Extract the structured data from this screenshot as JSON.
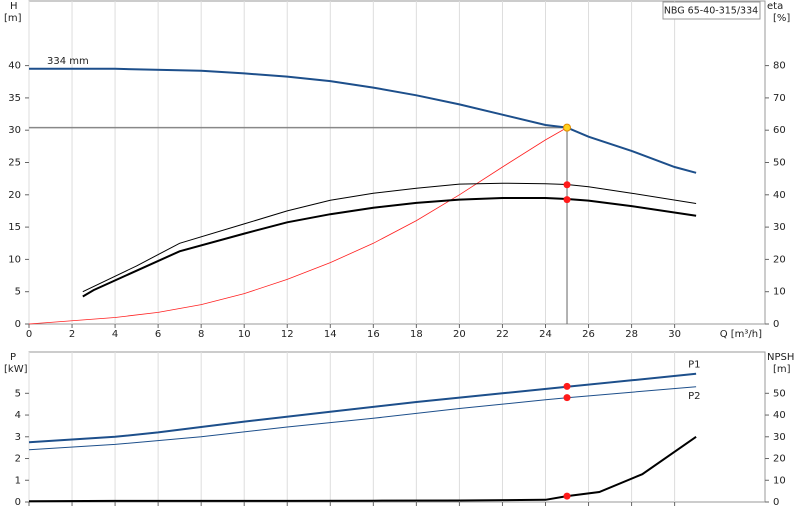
{
  "chart_data": [
    {
      "type": "line",
      "title": "NBG 65-40-315/334",
      "ylabel": "H",
      "yunit": "[m]",
      "y2label": "eta",
      "y2unit": "[%]",
      "xlabel": "Q [m³/h]",
      "annotation": "334 mm",
      "xlim": [
        0,
        34.2
      ],
      "xticks": [
        0,
        2,
        4,
        6,
        8,
        10,
        12,
        14,
        16,
        18,
        20,
        22,
        24,
        26,
        28,
        30
      ],
      "show_xtick_labels": true,
      "grid": "x",
      "ylim": [
        0,
        50
      ],
      "yticks": [
        0,
        5,
        10,
        15,
        20,
        25,
        30,
        35,
        40
      ],
      "y2lim": [
        0,
        100
      ],
      "y2ticks": [
        0,
        10,
        20,
        30,
        40,
        50,
        60,
        70,
        80
      ],
      "operating_point": {
        "x": 25,
        "y": 30.4
      },
      "series": [
        {
          "style": "line",
          "color": "#1d4f8b",
          "line_width": 2,
          "x": [
            0,
            4,
            8,
            10,
            12,
            14,
            16,
            18,
            20,
            22,
            24,
            25,
            26,
            28,
            30,
            31
          ],
          "values": [
            39.5,
            39.5,
            39.2,
            38.8,
            38.3,
            37.6,
            36.6,
            35.4,
            34.0,
            32.4,
            30.8,
            30.4,
            29.0,
            26.8,
            24.3,
            23.4
          ]
        },
        {
          "style": "line",
          "color": "#ff2020",
          "line_width": 0.8,
          "x": [
            0,
            4,
            6,
            8,
            10,
            12,
            14,
            16,
            18,
            20,
            22,
            24,
            25
          ],
          "values": [
            0,
            1,
            1.8,
            3,
            4.7,
            6.9,
            9.5,
            12.5,
            16,
            20,
            24.3,
            28.5,
            30.4
          ]
        },
        {
          "style": "line",
          "axis": "y2",
          "color": "#000000",
          "line_width": 1,
          "x": [
            2.5,
            5,
            7,
            10,
            12,
            14,
            16,
            18,
            20,
            22,
            24,
            25,
            26,
            28,
            31
          ],
          "values": [
            10,
            18,
            25,
            31,
            35,
            38.3,
            40.5,
            42,
            43.3,
            43.6,
            43.4,
            43.2,
            42.5,
            40.5,
            37.3
          ]
        },
        {
          "style": "line",
          "axis": "y2",
          "color": "#000000",
          "line_width": 2,
          "x": [
            2.5,
            3,
            5,
            7,
            10,
            12,
            14,
            16,
            18,
            20,
            22,
            24,
            25,
            26,
            28,
            31
          ],
          "values": [
            8.5,
            10.5,
            16.5,
            22.5,
            28,
            31.5,
            34,
            36,
            37.5,
            38.5,
            39,
            39,
            38.7,
            38.2,
            36.5,
            33.5
          ]
        },
        {
          "style": "point",
          "axis": "y2",
          "color": "#ff1a1a",
          "x": [
            25
          ],
          "values": [
            43.1
          ]
        },
        {
          "style": "point",
          "axis": "y2",
          "color": "#ff1a1a",
          "x": [
            25
          ],
          "values": [
            38.5
          ]
        },
        {
          "style": "point",
          "color": "#ffd21f",
          "x": [
            25
          ],
          "values": [
            30.4
          ]
        }
      ]
    },
    {
      "type": "line",
      "ylabel": "P",
      "yunit": "[kW]",
      "y2label": "NPSH",
      "y2unit": "[m]",
      "xlim": [
        0,
        34.2
      ],
      "xticks": [
        0,
        2,
        4,
        6,
        8,
        10,
        12,
        14,
        16,
        18,
        20,
        22,
        24,
        26,
        28,
        30
      ],
      "show_xtick_labels": false,
      "grid": "x",
      "ylim": [
        0,
        6.9
      ],
      "yticks": [
        0,
        1,
        2,
        3,
        4,
        5
      ],
      "y2lim": [
        0,
        69
      ],
      "y2ticks": [
        0,
        10,
        20,
        30,
        40,
        50
      ],
      "series": [
        {
          "style": "line",
          "name": "P1",
          "color": "#1d4f8b",
          "line_width": 2,
          "x": [
            0,
            4,
            6,
            10,
            14,
            18,
            22,
            25,
            28,
            31
          ],
          "values": [
            2.75,
            3.0,
            3.2,
            3.7,
            4.15,
            4.6,
            5.0,
            5.3,
            5.6,
            5.9
          ]
        },
        {
          "style": "line",
          "name": "P2",
          "color": "#1d4f8b",
          "line_width": 1,
          "x": [
            0,
            4,
            8,
            12,
            16,
            20,
            24,
            25,
            28,
            31
          ],
          "values": [
            2.4,
            2.65,
            3.0,
            3.45,
            3.85,
            4.3,
            4.7,
            4.8,
            5.05,
            5.3
          ]
        },
        {
          "style": "line",
          "axis": "y2",
          "color": "#000000",
          "line_width": 2,
          "x": [
            0,
            4,
            8,
            12,
            16,
            20,
            24,
            25,
            26.5,
            28.5,
            31
          ],
          "values": [
            0.3,
            0.5,
            0.5,
            0.5,
            0.6,
            0.7,
            1.0,
            2.7,
            4.6,
            12.8,
            30
          ]
        },
        {
          "style": "point",
          "color": "#ff1a1a",
          "x": [
            25
          ],
          "values": [
            5.32
          ]
        },
        {
          "style": "point",
          "color": "#ff1a1a",
          "x": [
            25
          ],
          "values": [
            4.8
          ]
        },
        {
          "style": "point",
          "axis": "y2",
          "color": "#ff1a1a",
          "x": [
            25
          ],
          "values": [
            2.7
          ]
        }
      ]
    }
  ]
}
